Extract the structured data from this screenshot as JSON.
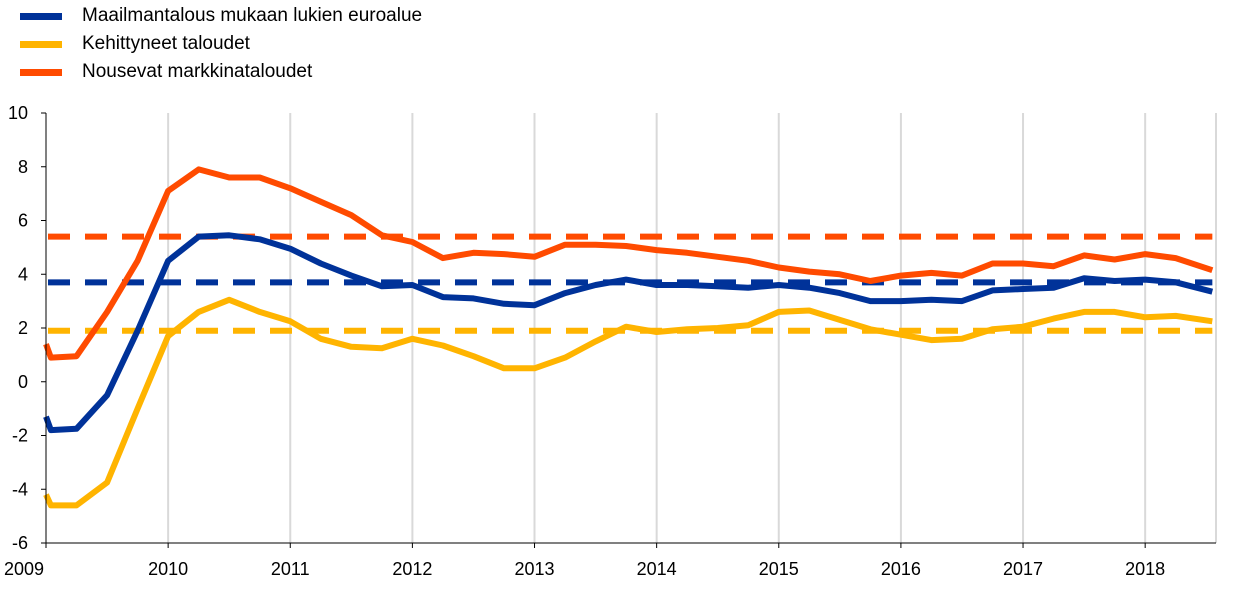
{
  "chart_data": {
    "type": "line",
    "title": "",
    "xlabel": "",
    "ylabel": "",
    "xlim": [
      2009.0,
      2018.58
    ],
    "ylim": [
      -6,
      10
    ],
    "y_ticks": [
      -6,
      -4,
      -2,
      0,
      2,
      4,
      6,
      8,
      10
    ],
    "x_ticks": [
      2009,
      2010,
      2011,
      2012,
      2013,
      2014,
      2015,
      2016,
      2017,
      2018
    ],
    "x_tick_labels": [
      "2009",
      "2010",
      "2011",
      "2012",
      "2013",
      "2014",
      "2015",
      "2016",
      "2017",
      "2018"
    ],
    "grid": "vertical",
    "legend_position": "top-left",
    "x": [
      2009.0,
      2009.04,
      2009.25,
      2009.5,
      2009.75,
      2010.0,
      2010.25,
      2010.5,
      2010.75,
      2011.0,
      2011.25,
      2011.5,
      2011.75,
      2012.0,
      2012.25,
      2012.5,
      2012.75,
      2013.0,
      2013.25,
      2013.5,
      2013.75,
      2014.0,
      2014.25,
      2014.5,
      2014.75,
      2015.0,
      2015.25,
      2015.5,
      2015.75,
      2016.0,
      2016.25,
      2016.5,
      2016.75,
      2017.0,
      2017.25,
      2017.5,
      2017.75,
      2018.0,
      2018.25,
      2018.55
    ],
    "series": [
      {
        "name": "Maailmantalous mukaan lukien euroalue",
        "color": "#003299",
        "values": [
          -1.3,
          -1.8,
          -1.75,
          -0.5,
          1.9,
          4.5,
          5.4,
          5.45,
          5.3,
          4.95,
          4.4,
          3.95,
          3.55,
          3.6,
          3.15,
          3.1,
          2.9,
          2.85,
          3.3,
          3.6,
          3.8,
          3.6,
          3.6,
          3.55,
          3.5,
          3.6,
          3.5,
          3.3,
          3.0,
          3.0,
          3.05,
          3.0,
          3.4,
          3.45,
          3.5,
          3.85,
          3.75,
          3.8,
          3.7,
          3.35
        ],
        "average": 3.7
      },
      {
        "name": "Kehittyneet taloudet",
        "color": "#FFB400",
        "values": [
          -4.2,
          -4.6,
          -4.6,
          -3.75,
          -1.0,
          1.7,
          2.6,
          3.05,
          2.6,
          2.25,
          1.6,
          1.3,
          1.25,
          1.6,
          1.35,
          0.95,
          0.5,
          0.5,
          0.9,
          1.5,
          2.05,
          1.85,
          1.95,
          2.0,
          2.1,
          2.6,
          2.65,
          2.3,
          1.95,
          1.75,
          1.55,
          1.6,
          1.95,
          2.05,
          2.35,
          2.6,
          2.6,
          2.4,
          2.45,
          2.25
        ],
        "average": 1.9
      },
      {
        "name": "Nousevat markkinataloudet",
        "color": "#FF4B00",
        "values": [
          1.4,
          0.9,
          0.95,
          2.6,
          4.5,
          7.1,
          7.9,
          7.6,
          7.6,
          7.2,
          6.7,
          6.2,
          5.45,
          5.2,
          4.6,
          4.8,
          4.75,
          4.65,
          5.1,
          5.1,
          5.05,
          4.9,
          4.8,
          4.65,
          4.5,
          4.25,
          4.1,
          4.0,
          3.75,
          3.95,
          4.05,
          3.95,
          4.4,
          4.4,
          4.3,
          4.7,
          4.55,
          4.75,
          4.6,
          4.15
        ],
        "average": 5.4
      }
    ]
  },
  "legend": [
    {
      "label": "Maailmantalous mukaan lukien euroalue",
      "color": "#003299"
    },
    {
      "label": "Kehittyneet taloudet",
      "color": "#FFB400"
    },
    {
      "label": "Nousevat markkinataloudet",
      "color": "#FF4B00"
    }
  ],
  "colors": {
    "grid": "#d9d9d9",
    "axis": "#000000"
  }
}
